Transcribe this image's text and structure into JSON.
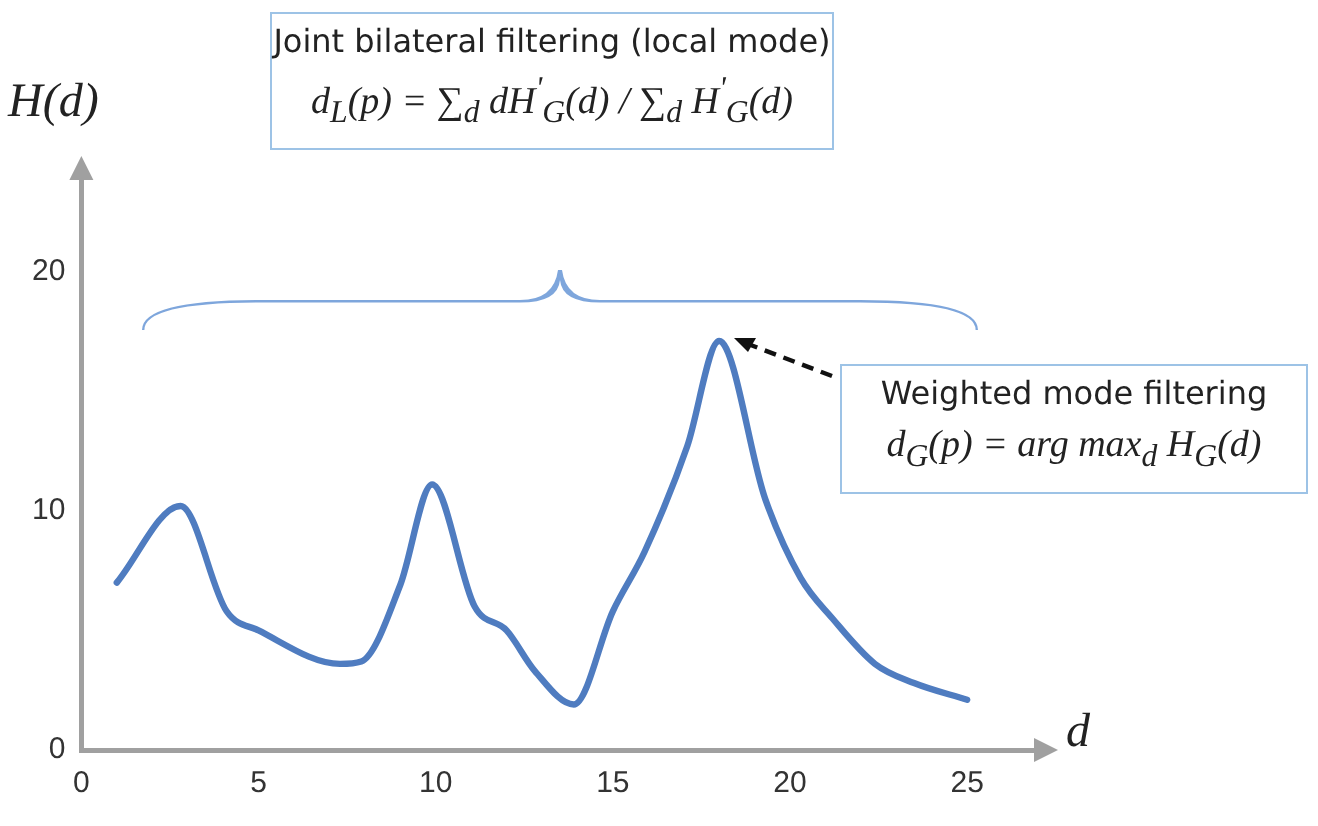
{
  "chart_data": {
    "type": "line",
    "xlabel": "d",
    "ylabel": "H(d)",
    "x": [
      1,
      2.8,
      4.1,
      5,
      7.3,
      7.9,
      9,
      9.9,
      11.1,
      12,
      12.8,
      13.9,
      15,
      15.9,
      17.1,
      18,
      19.3,
      20.3,
      21.2,
      22.4,
      23.5,
      25
    ],
    "series": [
      {
        "color": "#4f7cc0",
        "values": [
          7,
          10.2,
          5.8,
          5,
          3.6,
          3.7,
          6.9,
          11.1,
          6,
          5,
          3.3,
          1.9,
          5.8,
          8.3,
          12.7,
          17.1,
          10.5,
          7.2,
          5.5,
          3.6,
          2.8,
          2.1
        ]
      }
    ],
    "xlim": [
      0,
      27
    ],
    "xticks": [
      0,
      5,
      10,
      15,
      20,
      25
    ],
    "ylim": [
      0,
      24
    ],
    "yticks": [
      0,
      10,
      20
    ],
    "grid": false,
    "legend": false,
    "marker": "none",
    "line_style": "solid",
    "annotations": [
      "Joint bilateral filtering (local mode)",
      "d$_{L}$(p) = ∑$_{d}$ dH$^{'}$$_{G}$(d) / ∑$_{d}$ H$^{'}$$_{G}$(d)",
      "Weighted mode filtering",
      "d$_{G}$(p) = arg max$_{d}$ H$_{G}$(d)"
    ]
  }
}
